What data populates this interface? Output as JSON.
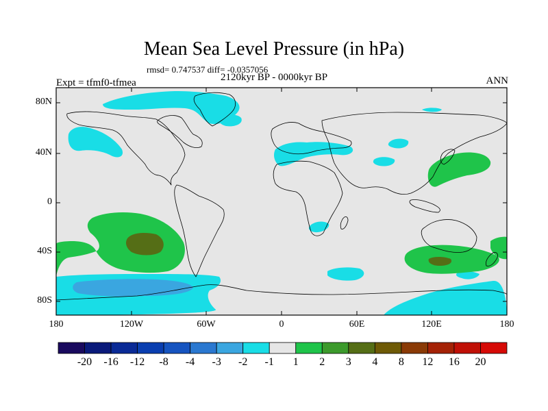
{
  "title": "Mean Sea Level Pressure (in hPa)",
  "stats": "rmsd= 0.747537 diff= -0.0357056",
  "period": "2120kyr BP - 0000kyr BP",
  "experiment": "Expt = tfmf0-tfmea",
  "season": "ANN",
  "lat_labels": [
    "80N",
    "40N",
    "0",
    "40S",
    "80S"
  ],
  "lon_labels": [
    "180",
    "120W",
    "60W",
    "0",
    "60E",
    "120E",
    "180"
  ],
  "colorbar": {
    "labels": [
      "-20",
      "-16",
      "-12",
      "-8",
      "-4",
      "-3",
      "-2",
      "-1",
      "1",
      "2",
      "3",
      "4",
      "8",
      "12",
      "16",
      "20"
    ],
    "colors": [
      "#1a0a5e",
      "#0a1a7a",
      "#0a2a96",
      "#0a3eb0",
      "#1654c0",
      "#2a78d0",
      "#3aa6e0",
      "#19dde6",
      "#e6e6e6",
      "#1fc44a",
      "#3c9a2c",
      "#556e16",
      "#6e5a06",
      "#8a3a06",
      "#a42206",
      "#c01006",
      "#d60a06"
    ]
  },
  "colors": {
    "neutral": "#e6e6e6",
    "neg1": "#19dde6",
    "neg2": "#3aa6e0",
    "pos2": "#1fc44a",
    "pos3": "#3c9a2c",
    "pos4": "#556e16"
  }
}
